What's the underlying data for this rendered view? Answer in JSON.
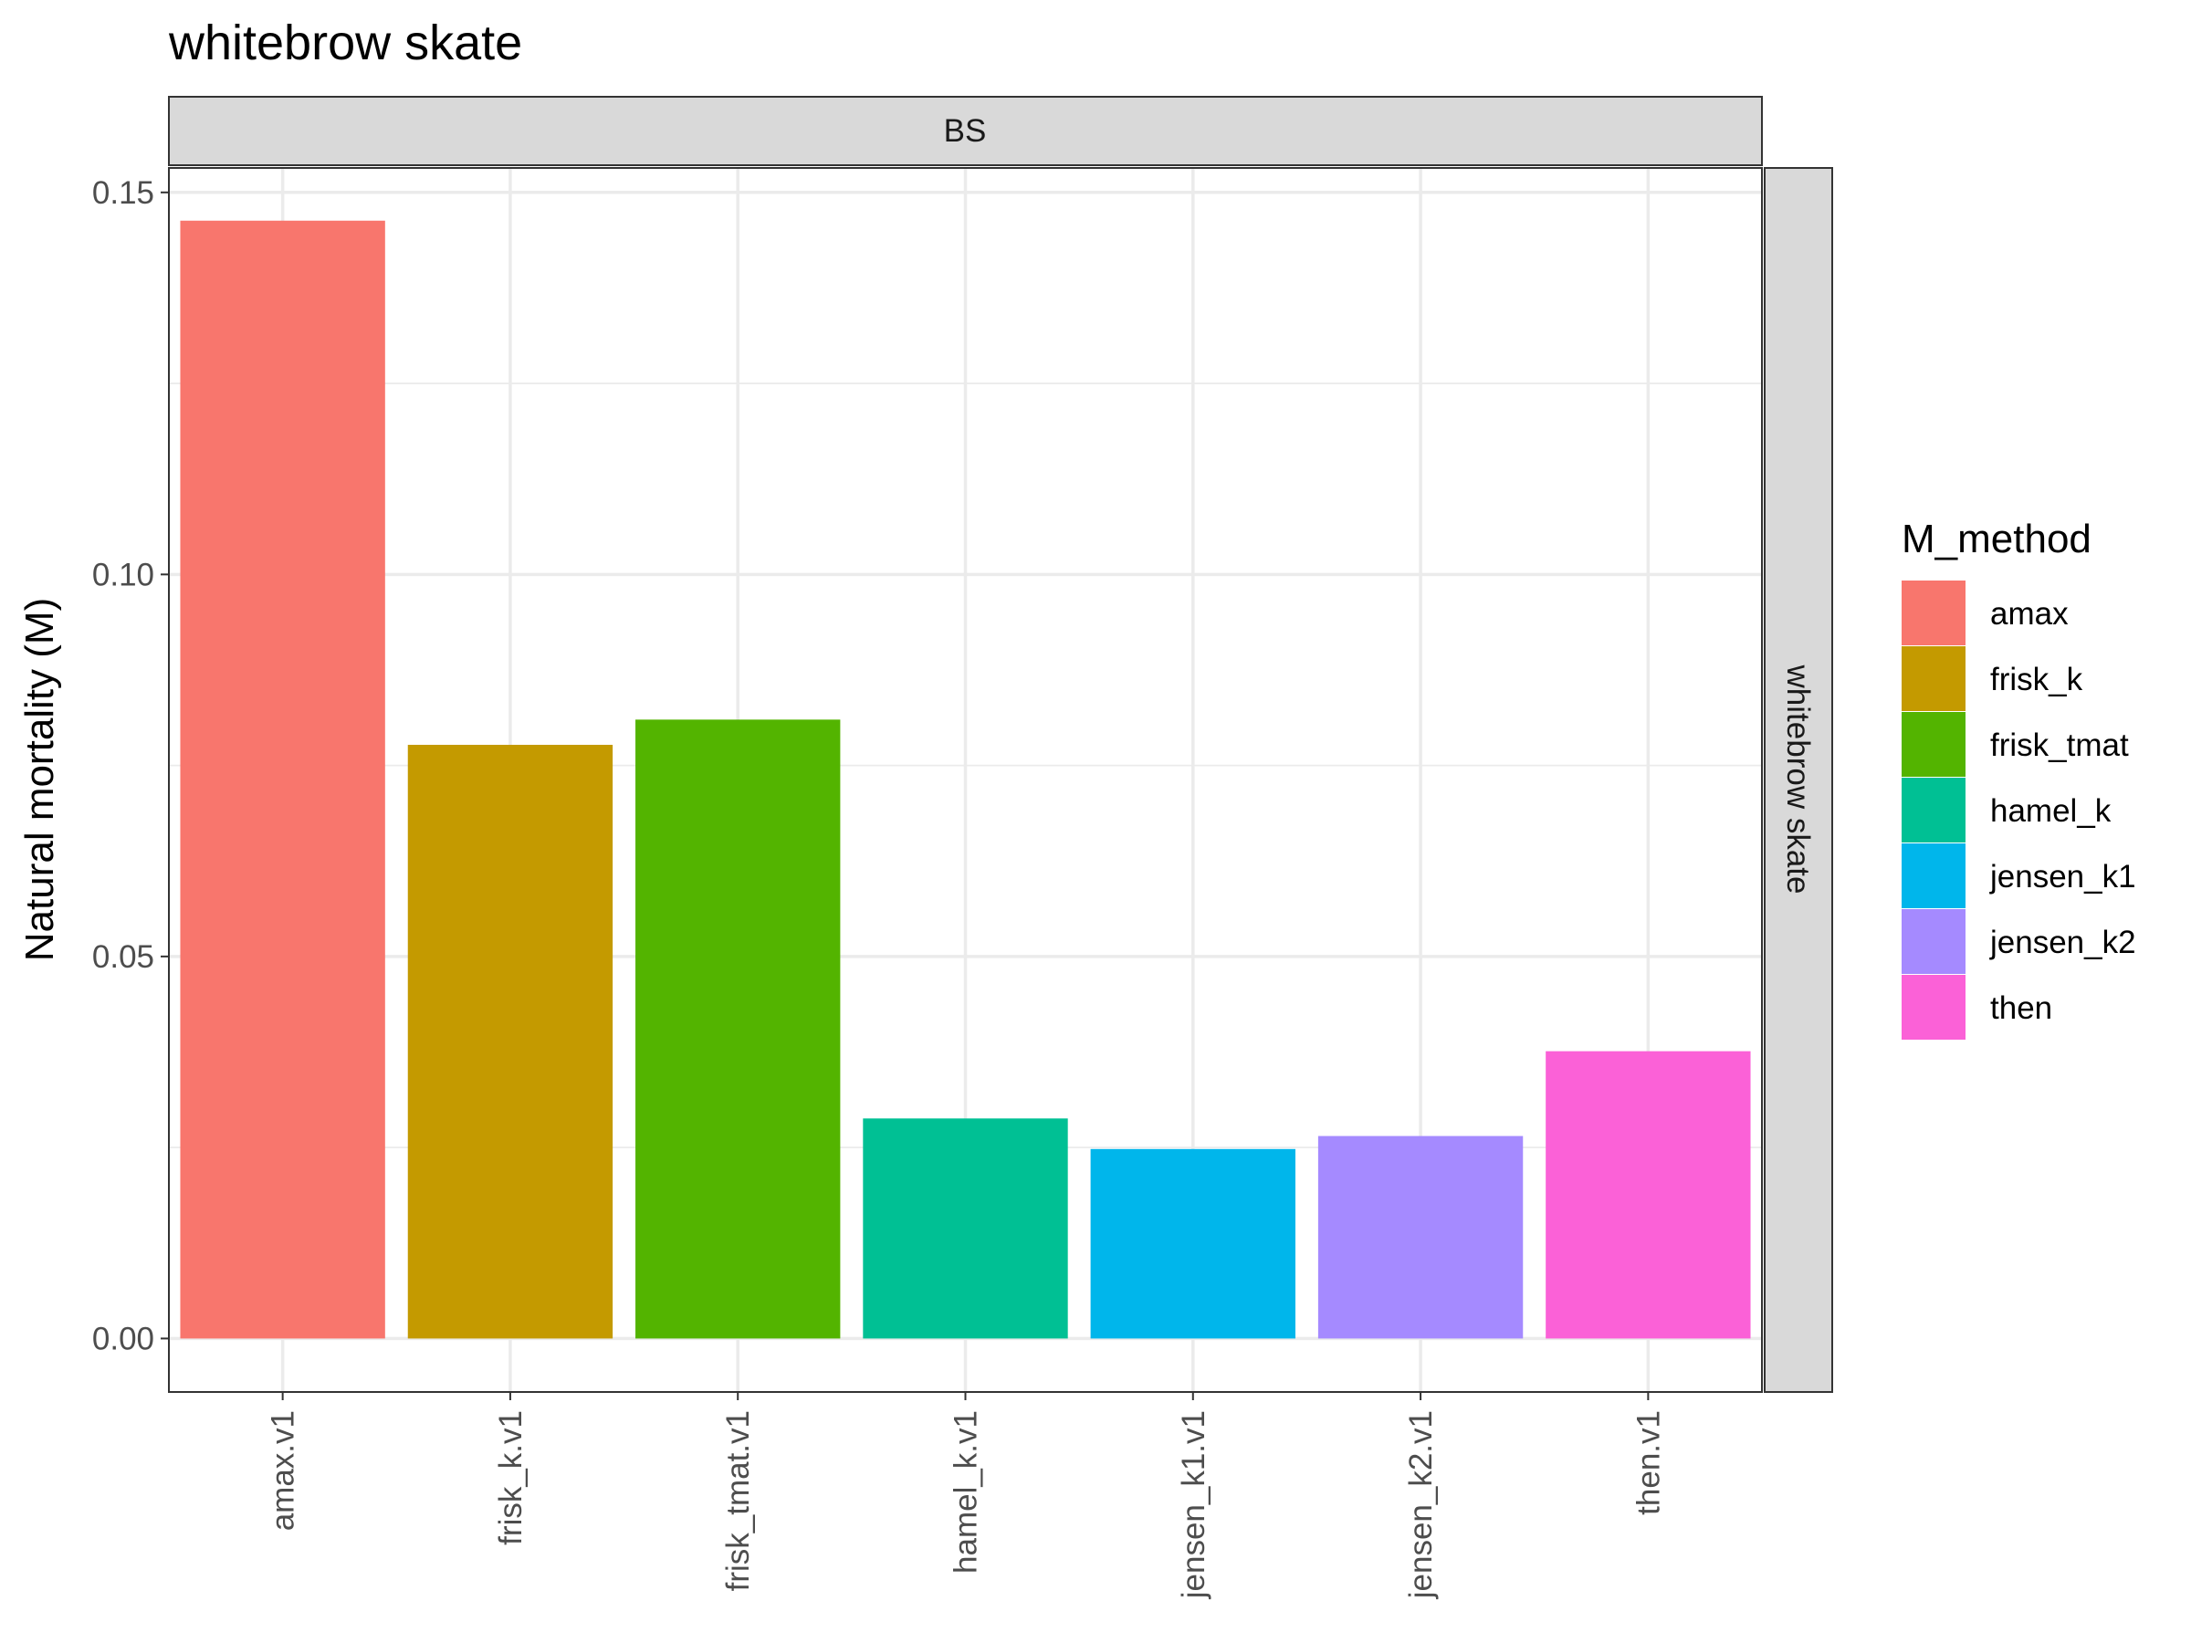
{
  "chart_data": {
    "type": "bar",
    "title": "whitebrow skate",
    "facet_col_label": "BS",
    "facet_row_label": "whitebrow skate",
    "xlabel": "",
    "ylabel": "Natural mortality (M)",
    "ylim": [
      -0.007,
      0.1532
    ],
    "yticks": [
      "0.00",
      "0.05",
      "0.10",
      "0.15"
    ],
    "ytick_values": [
      0.0,
      0.05,
      0.1,
      0.15
    ],
    "grid": true,
    "legend_position": "right",
    "legend_title": "M_method",
    "categories": [
      "amax.v1",
      "frisk_k.v1",
      "frisk_tmat.v1",
      "hamel_k.v1",
      "jensen_k1.v1",
      "jensen_k2.v1",
      "then.v1"
    ],
    "values": [
      0.1463,
      0.0777,
      0.081,
      0.0288,
      0.0248,
      0.0265,
      0.0376
    ],
    "methods": [
      "amax",
      "frisk_k",
      "frisk_tmat",
      "hamel_k",
      "jensen_k1",
      "jensen_k2",
      "then"
    ],
    "colors": [
      "#F8766D",
      "#C49A00",
      "#53B400",
      "#00C094",
      "#00B6EB",
      "#A58AFF",
      "#FB61D7"
    ]
  }
}
